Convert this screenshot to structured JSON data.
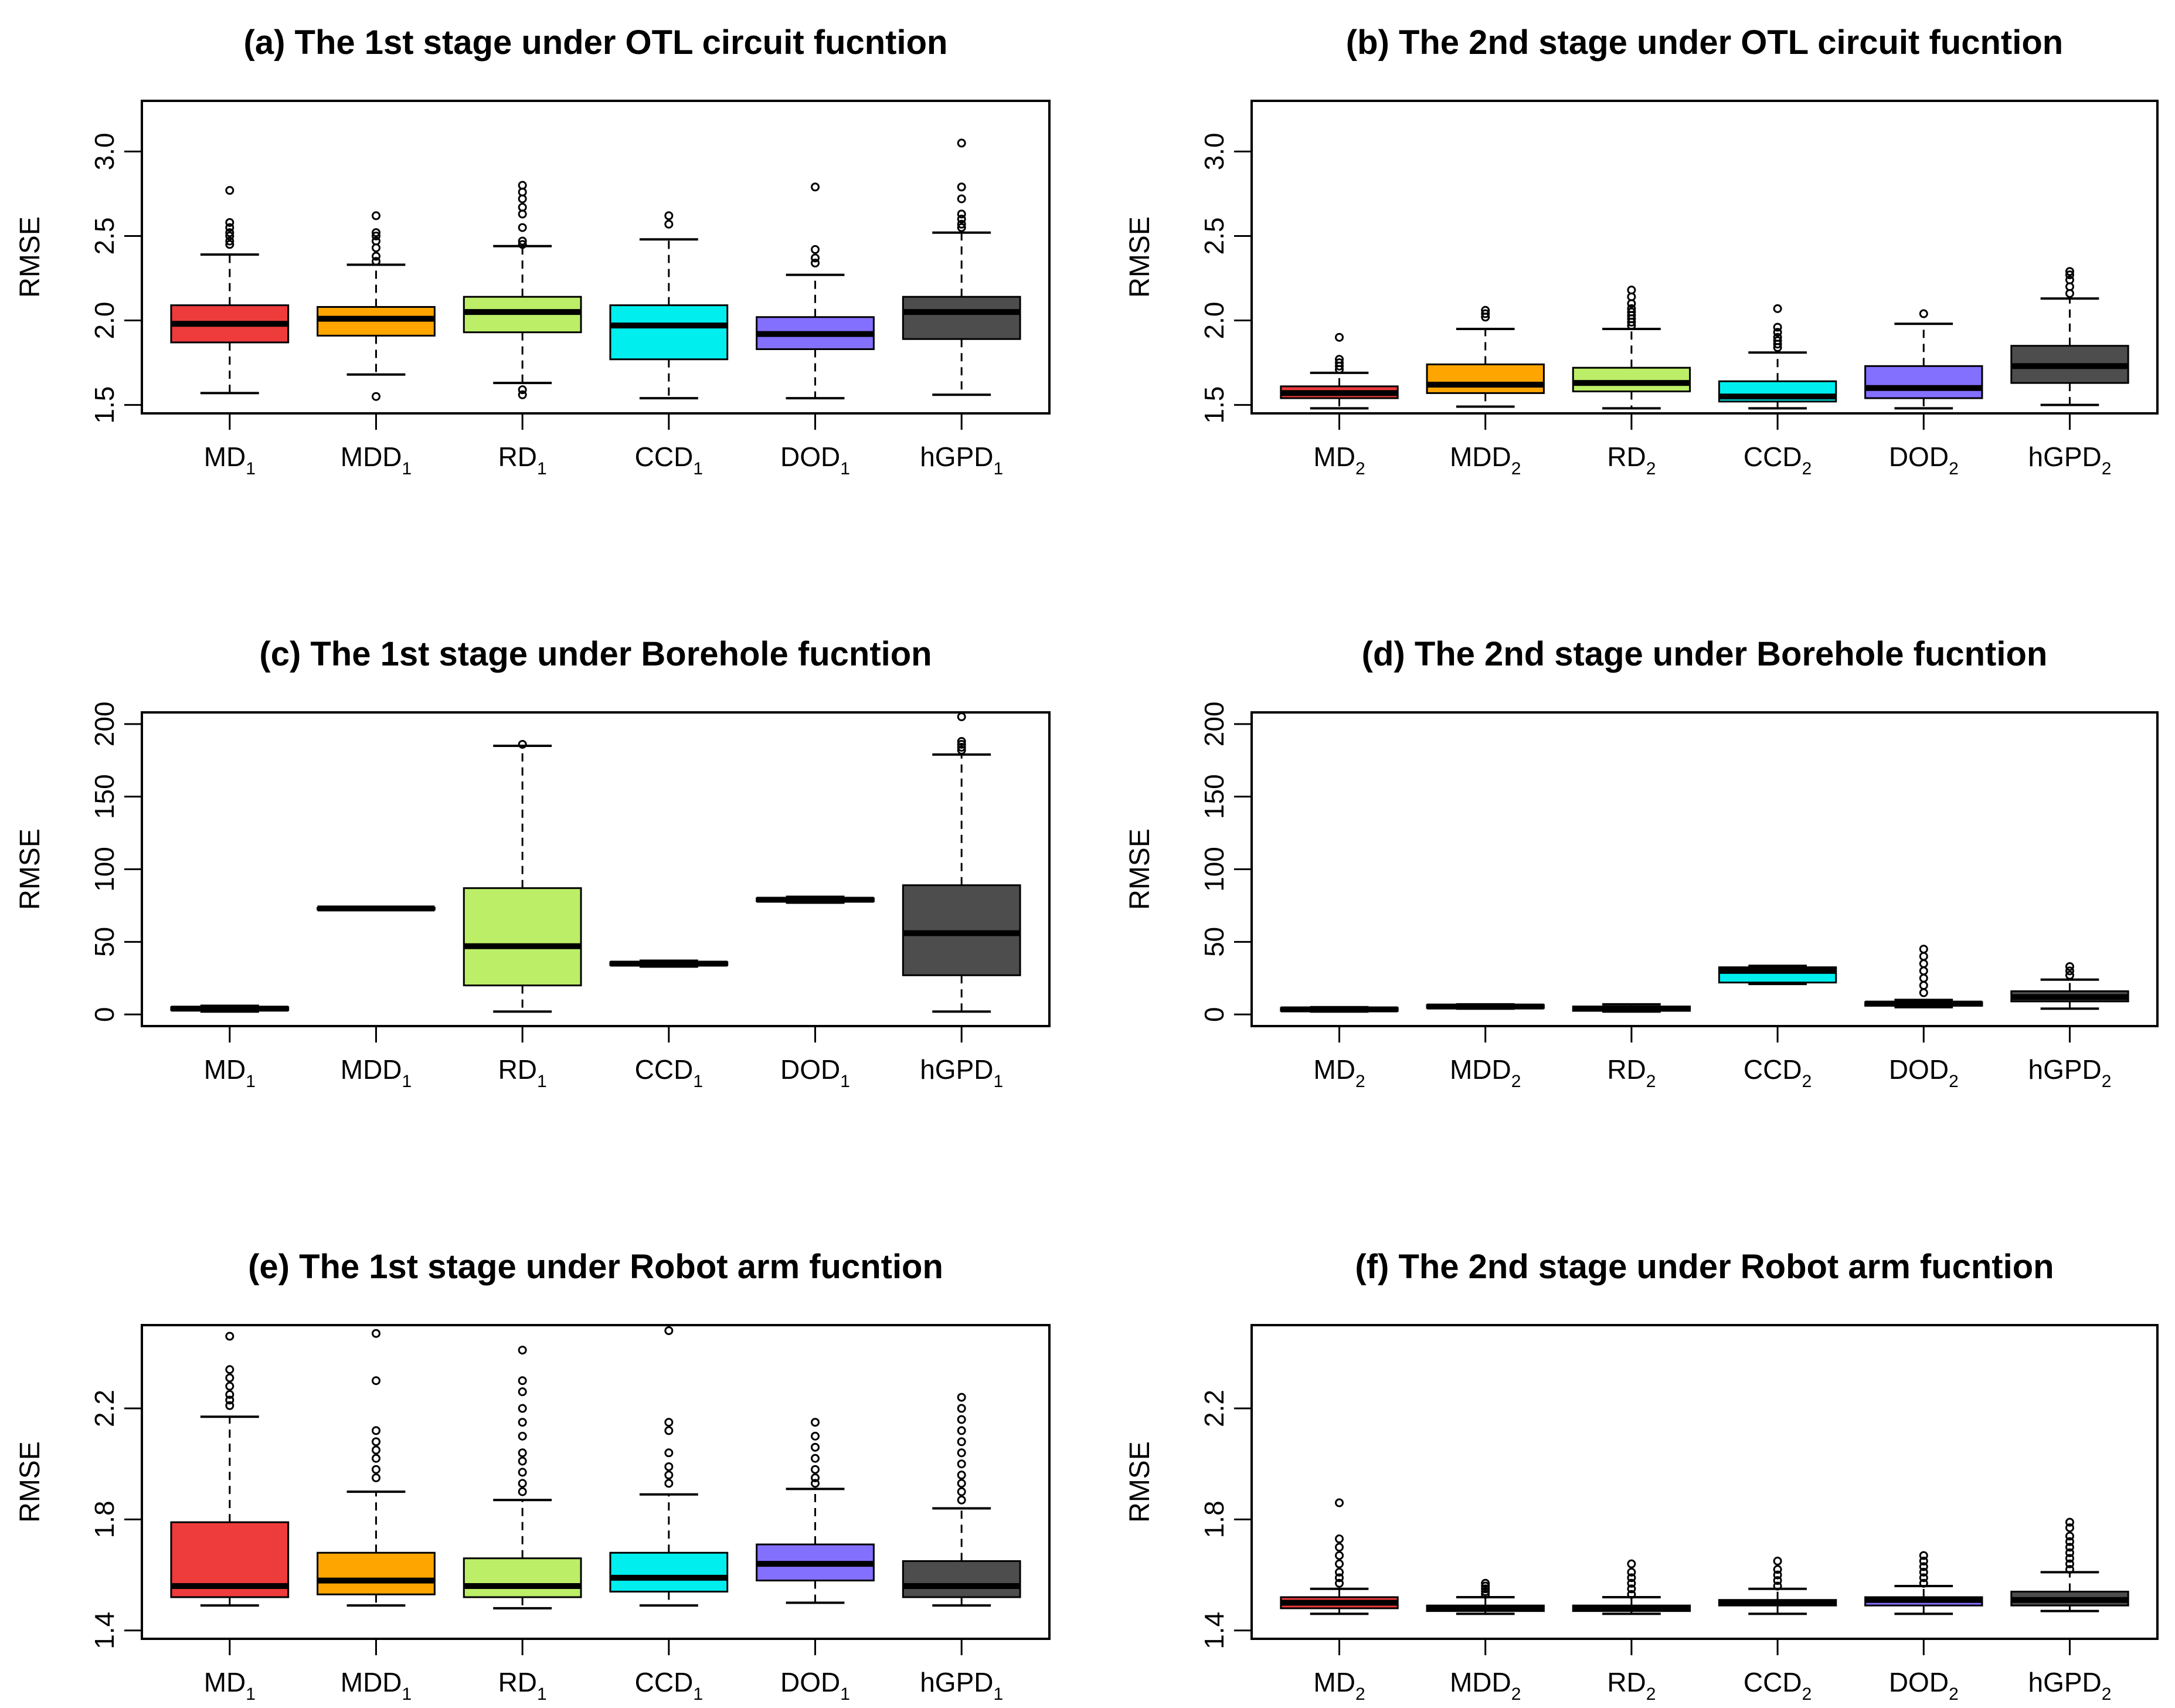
{
  "figure": {
    "colors": {
      "MD": "#ee3b3b",
      "MDD": "#ffa500",
      "RD": "#bcee68",
      "CCD": "#00eeee",
      "DOD": "#8470ff",
      "hGPD": "#4d4d4d"
    }
  },
  "chart_data": [
    {
      "id": "a",
      "type": "boxplot",
      "title": "(a) The 1st stage under OTL circuit fucntion",
      "ylabel": "RMSE",
      "ylim": [
        1.45,
        3.3
      ],
      "yticks": [
        1.5,
        2.0,
        2.5,
        3.0
      ],
      "ytick_labels": [
        "1.5",
        "2.0",
        "2.5",
        "3.0"
      ],
      "categories": [
        {
          "base": "MD",
          "sub": "1"
        },
        {
          "base": "MDD",
          "sub": "1"
        },
        {
          "base": "RD",
          "sub": "1"
        },
        {
          "base": "CCD",
          "sub": "1"
        },
        {
          "base": "DOD",
          "sub": "1"
        },
        {
          "base": "hGPD",
          "sub": "1"
        }
      ],
      "colors": [
        "#ee3b3b",
        "#ffa500",
        "#bcee68",
        "#00eeee",
        "#8470ff",
        "#4d4d4d"
      ],
      "boxes": [
        {
          "whislo": 1.57,
          "q1": 1.87,
          "med": 1.98,
          "q3": 2.09,
          "whishi": 2.39,
          "fliers": [
            2.45,
            2.47,
            2.5,
            2.52,
            2.55,
            2.58,
            2.77
          ]
        },
        {
          "whislo": 1.68,
          "q1": 1.91,
          "med": 2.01,
          "q3": 2.08,
          "whishi": 2.33,
          "fliers": [
            1.55,
            2.35,
            2.38,
            2.43,
            2.47,
            2.5,
            2.52,
            2.62
          ]
        },
        {
          "whislo": 1.63,
          "q1": 1.93,
          "med": 2.05,
          "q3": 2.14,
          "whishi": 2.44,
          "fliers": [
            1.56,
            1.59,
            2.45,
            2.47,
            2.55,
            2.63,
            2.67,
            2.72,
            2.76,
            2.8
          ]
        },
        {
          "whislo": 1.54,
          "q1": 1.77,
          "med": 1.97,
          "q3": 2.09,
          "whishi": 2.48,
          "fliers": [
            2.57,
            2.62
          ]
        },
        {
          "whislo": 1.54,
          "q1": 1.83,
          "med": 1.92,
          "q3": 2.02,
          "whishi": 2.27,
          "fliers": [
            2.34,
            2.37,
            2.42,
            2.79
          ]
        },
        {
          "whislo": 1.56,
          "q1": 1.89,
          "med": 2.05,
          "q3": 2.14,
          "whishi": 2.52,
          "fliers": [
            2.55,
            2.57,
            2.6,
            2.63,
            2.72,
            2.79,
            3.05
          ]
        }
      ]
    },
    {
      "id": "b",
      "type": "boxplot",
      "title": "(b) The 2nd stage under OTL circuit fucntion",
      "ylabel": "RMSE",
      "ylim": [
        1.45,
        3.3
      ],
      "yticks": [
        1.5,
        2.0,
        2.5,
        3.0
      ],
      "ytick_labels": [
        "1.5",
        "2.0",
        "2.5",
        "3.0"
      ],
      "categories": [
        {
          "base": "MD",
          "sub": "2"
        },
        {
          "base": "MDD",
          "sub": "2"
        },
        {
          "base": "RD",
          "sub": "2"
        },
        {
          "base": "CCD",
          "sub": "2"
        },
        {
          "base": "DOD",
          "sub": "2"
        },
        {
          "base": "hGPD",
          "sub": "2"
        }
      ],
      "colors": [
        "#ee3b3b",
        "#ffa500",
        "#bcee68",
        "#00eeee",
        "#8470ff",
        "#4d4d4d"
      ],
      "boxes": [
        {
          "whislo": 1.48,
          "q1": 1.54,
          "med": 1.57,
          "q3": 1.61,
          "whishi": 1.69,
          "fliers": [
            1.71,
            1.73,
            1.75,
            1.77,
            1.9
          ]
        },
        {
          "whislo": 1.49,
          "q1": 1.57,
          "med": 1.62,
          "q3": 1.74,
          "whishi": 1.95,
          "fliers": [
            2.02,
            2.04,
            2.06
          ]
        },
        {
          "whislo": 1.48,
          "q1": 1.58,
          "med": 1.63,
          "q3": 1.72,
          "whishi": 1.95,
          "fliers": [
            1.97,
            1.99,
            2.01,
            2.03,
            2.05,
            2.07,
            2.1,
            2.14,
            2.18
          ]
        },
        {
          "whislo": 1.48,
          "q1": 1.52,
          "med": 1.55,
          "q3": 1.64,
          "whishi": 1.81,
          "fliers": [
            1.84,
            1.86,
            1.88,
            1.9,
            1.93,
            1.96,
            2.07
          ]
        },
        {
          "whislo": 1.48,
          "q1": 1.54,
          "med": 1.6,
          "q3": 1.73,
          "whishi": 1.98,
          "fliers": [
            2.04
          ]
        },
        {
          "whislo": 1.5,
          "q1": 1.63,
          "med": 1.73,
          "q3": 1.85,
          "whishi": 2.13,
          "fliers": [
            2.16,
            2.2,
            2.24,
            2.27,
            2.29
          ]
        }
      ]
    },
    {
      "id": "c",
      "type": "boxplot",
      "title": "(c) The 1st stage under Borehole fucntion",
      "ylabel": "RMSE",
      "ylim": [
        -8,
        208
      ],
      "yticks": [
        0,
        50,
        100,
        150,
        200
      ],
      "ytick_labels": [
        "0",
        "50",
        "100",
        "150",
        "200"
      ],
      "categories": [
        {
          "base": "MD",
          "sub": "1"
        },
        {
          "base": "MDD",
          "sub": "1"
        },
        {
          "base": "RD",
          "sub": "1"
        },
        {
          "base": "CCD",
          "sub": "1"
        },
        {
          "base": "DOD",
          "sub": "1"
        },
        {
          "base": "hGPD",
          "sub": "1"
        }
      ],
      "colors": [
        "#ee3b3b",
        "#ffa500",
        "#bcee68",
        "#00eeee",
        "#8470ff",
        "#4d4d4d"
      ],
      "boxes": [
        {
          "whislo": 2.0,
          "q1": 3.0,
          "med": 4.0,
          "q3": 5.0,
          "whishi": 6.0,
          "fliers": []
        },
        {
          "whislo": 72.0,
          "q1": 72.5,
          "med": 73.0,
          "q3": 73.5,
          "whishi": 74.0,
          "fliers": []
        },
        {
          "whislo": 2.0,
          "q1": 20.0,
          "med": 47.0,
          "q3": 87.0,
          "whishi": 185.0,
          "fliers": [
            186.0
          ]
        },
        {
          "whislo": 33.0,
          "q1": 34.0,
          "med": 35.0,
          "q3": 36.0,
          "whishi": 37.0,
          "fliers": []
        },
        {
          "whislo": 77.0,
          "q1": 78.0,
          "med": 79.0,
          "q3": 80.0,
          "whishi": 81.0,
          "fliers": []
        },
        {
          "whislo": 2.0,
          "q1": 27.0,
          "med": 56.0,
          "q3": 89.0,
          "whishi": 179.0,
          "fliers": [
            182.0,
            184.0,
            186.0,
            188.0,
            205.0
          ]
        }
      ]
    },
    {
      "id": "d",
      "type": "boxplot",
      "title": "(d) The 2nd stage under Borehole fucntion",
      "ylabel": "RMSE",
      "ylim": [
        -8,
        208
      ],
      "yticks": [
        0,
        50,
        100,
        150,
        200
      ],
      "ytick_labels": [
        "0",
        "50",
        "100",
        "150",
        "200"
      ],
      "categories": [
        {
          "base": "MD",
          "sub": "2"
        },
        {
          "base": "MDD",
          "sub": "2"
        },
        {
          "base": "RD",
          "sub": "2"
        },
        {
          "base": "CCD",
          "sub": "2"
        },
        {
          "base": "DOD",
          "sub": "2"
        },
        {
          "base": "hGPD",
          "sub": "2"
        }
      ],
      "colors": [
        "#ee3b3b",
        "#ffa500",
        "#bcee68",
        "#00eeee",
        "#8470ff",
        "#4d4d4d"
      ],
      "boxes": [
        {
          "whislo": 2.0,
          "q1": 2.5,
          "med": 3.5,
          "q3": 4.5,
          "whishi": 5.0,
          "fliers": []
        },
        {
          "whislo": 4.0,
          "q1": 4.5,
          "med": 5.5,
          "q3": 6.5,
          "whishi": 7.0,
          "fliers": []
        },
        {
          "whislo": 2.0,
          "q1": 2.5,
          "med": 4.0,
          "q3": 5.5,
          "whishi": 7.0,
          "fliers": []
        },
        {
          "whislo": 21.0,
          "q1": 22.0,
          "med": 30.0,
          "q3": 32.5,
          "whishi": 33.5,
          "fliers": []
        },
        {
          "whislo": 5.0,
          "q1": 6.0,
          "med": 7.5,
          "q3": 8.5,
          "whishi": 10.0,
          "fliers": [
            15.0,
            20.0,
            25.0,
            30.0,
            35.0,
            40.0,
            45.0
          ]
        },
        {
          "whislo": 4.0,
          "q1": 9.0,
          "med": 12.0,
          "q3": 16.0,
          "whishi": 24.0,
          "fliers": [
            27.0,
            30.0,
            33.0
          ]
        }
      ]
    },
    {
      "id": "e",
      "type": "boxplot",
      "title": "(e) The 1st stage under Robot arm fucntion",
      "ylabel": "RMSE",
      "ylim": [
        1.37,
        2.5
      ],
      "yticks": [
        1.4,
        1.8,
        2.2
      ],
      "ytick_labels": [
        "1.4",
        "1.8",
        "2.2"
      ],
      "categories": [
        {
          "base": "MD",
          "sub": "1"
        },
        {
          "base": "MDD",
          "sub": "1"
        },
        {
          "base": "RD",
          "sub": "1"
        },
        {
          "base": "CCD",
          "sub": "1"
        },
        {
          "base": "DOD",
          "sub": "1"
        },
        {
          "base": "hGPD",
          "sub": "1"
        }
      ],
      "colors": [
        "#ee3b3b",
        "#ffa500",
        "#bcee68",
        "#00eeee",
        "#8470ff",
        "#4d4d4d"
      ],
      "boxes": [
        {
          "whislo": 1.49,
          "q1": 1.52,
          "med": 1.56,
          "q3": 1.79,
          "whishi": 2.17,
          "fliers": [
            2.21,
            2.23,
            2.25,
            2.28,
            2.31,
            2.34,
            2.46
          ]
        },
        {
          "whislo": 1.49,
          "q1": 1.53,
          "med": 1.58,
          "q3": 1.68,
          "whishi": 1.9,
          "fliers": [
            1.95,
            1.98,
            2.02,
            2.05,
            2.08,
            2.12,
            2.3,
            2.47
          ]
        },
        {
          "whislo": 1.48,
          "q1": 1.52,
          "med": 1.56,
          "q3": 1.66,
          "whishi": 1.87,
          "fliers": [
            1.9,
            1.93,
            1.97,
            2.01,
            2.04,
            2.1,
            2.15,
            2.2,
            2.26,
            2.3,
            2.41
          ]
        },
        {
          "whislo": 1.49,
          "q1": 1.54,
          "med": 1.59,
          "q3": 1.68,
          "whishi": 1.89,
          "fliers": [
            1.93,
            1.96,
            1.99,
            2.04,
            2.12,
            2.15,
            2.48
          ]
        },
        {
          "whislo": 1.5,
          "q1": 1.58,
          "med": 1.64,
          "q3": 1.71,
          "whishi": 1.91,
          "fliers": [
            1.93,
            1.95,
            1.98,
            2.02,
            2.06,
            2.1,
            2.15
          ]
        },
        {
          "whislo": 1.49,
          "q1": 1.52,
          "med": 1.56,
          "q3": 1.65,
          "whishi": 1.84,
          "fliers": [
            1.87,
            1.9,
            1.93,
            1.96,
            2.0,
            2.04,
            2.08,
            2.12,
            2.16,
            2.2,
            2.24
          ]
        }
      ]
    },
    {
      "id": "f",
      "type": "boxplot",
      "title": "(f) The 2nd stage under Robot arm fucntion",
      "ylabel": "RMSE",
      "ylim": [
        1.37,
        2.5
      ],
      "yticks": [
        1.4,
        1.8,
        2.2
      ],
      "ytick_labels": [
        "1.4",
        "1.8",
        "2.2"
      ],
      "categories": [
        {
          "base": "MD",
          "sub": "2"
        },
        {
          "base": "MDD",
          "sub": "2"
        },
        {
          "base": "RD",
          "sub": "2"
        },
        {
          "base": "CCD",
          "sub": "2"
        },
        {
          "base": "DOD",
          "sub": "2"
        },
        {
          "base": "hGPD",
          "sub": "2"
        }
      ],
      "colors": [
        "#ee3b3b",
        "#ffa500",
        "#bcee68",
        "#00eeee",
        "#8470ff",
        "#4d4d4d"
      ],
      "boxes": [
        {
          "whislo": 1.46,
          "q1": 1.48,
          "med": 1.5,
          "q3": 1.52,
          "whishi": 1.55,
          "fliers": [
            1.57,
            1.59,
            1.61,
            1.64,
            1.67,
            1.7,
            1.73,
            1.86
          ]
        },
        {
          "whislo": 1.46,
          "q1": 1.47,
          "med": 1.48,
          "q3": 1.49,
          "whishi": 1.52,
          "fliers": [
            1.53,
            1.54,
            1.55,
            1.56,
            1.57
          ]
        },
        {
          "whislo": 1.46,
          "q1": 1.47,
          "med": 1.48,
          "q3": 1.49,
          "whishi": 1.52,
          "fliers": [
            1.53,
            1.55,
            1.57,
            1.59,
            1.61,
            1.64
          ]
        },
        {
          "whislo": 1.46,
          "q1": 1.49,
          "med": 1.5,
          "q3": 1.51,
          "whishi": 1.55,
          "fliers": [
            1.56,
            1.58,
            1.6,
            1.62,
            1.65
          ]
        },
        {
          "whislo": 1.46,
          "q1": 1.49,
          "med": 1.51,
          "q3": 1.52,
          "whishi": 1.56,
          "fliers": [
            1.57,
            1.59,
            1.61,
            1.63,
            1.65,
            1.67
          ]
        },
        {
          "whislo": 1.47,
          "q1": 1.49,
          "med": 1.51,
          "q3": 1.54,
          "whishi": 1.61,
          "fliers": [
            1.62,
            1.64,
            1.66,
            1.68,
            1.7,
            1.72,
            1.74,
            1.77,
            1.79
          ]
        }
      ]
    }
  ]
}
